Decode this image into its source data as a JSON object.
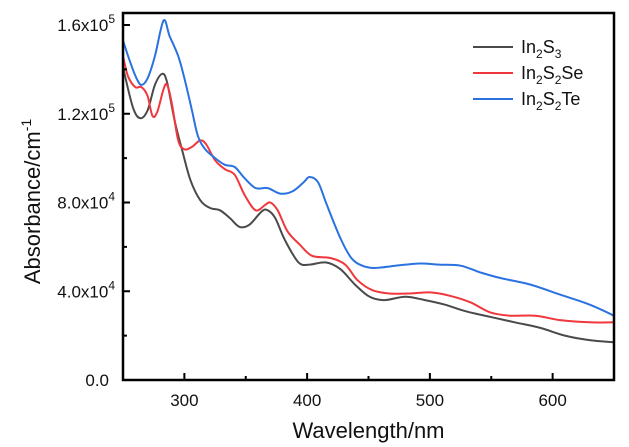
{
  "chart_data": {
    "type": "line",
    "title": "",
    "xlabel": "Wavelength/nm",
    "ylabel": "Absorbance/cm",
    "ylabel_superscript": "-1",
    "xlim": [
      250,
      650
    ],
    "ylim": [
      0,
      165000
    ],
    "x_ticks": [
      300,
      400,
      500,
      600
    ],
    "x_tick_labels": [
      "300",
      "400",
      "500",
      "600"
    ],
    "x_minor_ticks": [
      350,
      450,
      550
    ],
    "y_ticks": [
      0,
      40000,
      80000,
      120000,
      160000
    ],
    "y_tick_labels": [
      {
        "mantissa": "0.0",
        "exp": ""
      },
      {
        "mantissa": "4.0x10",
        "exp": "4"
      },
      {
        "mantissa": "8.0x10",
        "exp": "4"
      },
      {
        "mantissa": "1.2x10",
        "exp": "5"
      },
      {
        "mantissa": "1.6x10",
        "exp": "5"
      }
    ],
    "y_minor_ticks": [
      20000,
      60000,
      100000,
      140000
    ],
    "grid": false,
    "legend_position": "top-right",
    "series": [
      {
        "name": "In2S3",
        "label_parts": [
          [
            "In",
            ""
          ],
          [
            "2",
            "sub"
          ],
          [
            "S",
            ""
          ],
          [
            "3",
            "sub"
          ]
        ],
        "color": "#4a4a4a",
        "points": [
          [
            250,
            141000
          ],
          [
            258,
            123000
          ],
          [
            264,
            118000
          ],
          [
            270,
            121500
          ],
          [
            276,
            133000
          ],
          [
            282,
            138000
          ],
          [
            286,
            134000
          ],
          [
            292,
            117000
          ],
          [
            298,
            104000
          ],
          [
            305,
            90000
          ],
          [
            313,
            81000
          ],
          [
            321,
            77500
          ],
          [
            329,
            76500
          ],
          [
            337,
            73000
          ],
          [
            345,
            69000
          ],
          [
            353,
            70000
          ],
          [
            363,
            76000
          ],
          [
            368,
            76500
          ],
          [
            374,
            73000
          ],
          [
            382,
            63000
          ],
          [
            393,
            53000
          ],
          [
            402,
            52000
          ],
          [
            415,
            53000
          ],
          [
            427,
            50000
          ],
          [
            439,
            43000
          ],
          [
            451,
            37500
          ],
          [
            463,
            36000
          ],
          [
            480,
            37500
          ],
          [
            496,
            36000
          ],
          [
            512,
            34000
          ],
          [
            529,
            31000
          ],
          [
            549,
            28500
          ],
          [
            569,
            26000
          ],
          [
            590,
            23500
          ],
          [
            610,
            20000
          ],
          [
            630,
            18000
          ],
          [
            650,
            17000
          ]
        ]
      },
      {
        "name": "In2S2Se",
        "label_parts": [
          [
            "In",
            ""
          ],
          [
            "2",
            "sub"
          ],
          [
            "S",
            ""
          ],
          [
            "2",
            "sub"
          ],
          [
            "Se",
            ""
          ]
        ],
        "color": "#f0373c",
        "points": [
          [
            250,
            146000
          ],
          [
            254,
            137000
          ],
          [
            260,
            132000
          ],
          [
            265,
            132000
          ],
          [
            270,
            128000
          ],
          [
            274,
            119000
          ],
          [
            278,
            121000
          ],
          [
            283,
            131000
          ],
          [
            286,
            133000
          ],
          [
            290,
            124000
          ],
          [
            295,
            108000
          ],
          [
            300,
            104000
          ],
          [
            306,
            105000
          ],
          [
            313,
            108000
          ],
          [
            318,
            106000
          ],
          [
            325,
            99000
          ],
          [
            333,
            95000
          ],
          [
            341,
            92500
          ],
          [
            349,
            83500
          ],
          [
            358,
            76500
          ],
          [
            366,
            79000
          ],
          [
            370,
            80000
          ],
          [
            376,
            76500
          ],
          [
            384,
            67000
          ],
          [
            394,
            61000
          ],
          [
            404,
            56000
          ],
          [
            419,
            55000
          ],
          [
            431,
            52000
          ],
          [
            441,
            45000
          ],
          [
            453,
            40500
          ],
          [
            467,
            39000
          ],
          [
            484,
            39000
          ],
          [
            500,
            39500
          ],
          [
            516,
            38000
          ],
          [
            533,
            35000
          ],
          [
            549,
            30500
          ],
          [
            565,
            29000
          ],
          [
            586,
            29000
          ],
          [
            606,
            27000
          ],
          [
            630,
            26000
          ],
          [
            650,
            26000
          ]
        ]
      },
      {
        "name": "In2S2Te",
        "label_parts": [
          [
            "In",
            ""
          ],
          [
            "2",
            "sub"
          ],
          [
            "S",
            ""
          ],
          [
            "2",
            "sub"
          ],
          [
            "Te",
            ""
          ]
        ],
        "color": "#2a72e0",
        "points": [
          [
            250,
            153000
          ],
          [
            256,
            143000
          ],
          [
            261,
            136000
          ],
          [
            265,
            133000
          ],
          [
            270,
            136000
          ],
          [
            276,
            146000
          ],
          [
            283,
            162000
          ],
          [
            288,
            155000
          ],
          [
            295,
            146000
          ],
          [
            300,
            136000
          ],
          [
            306,
            122000
          ],
          [
            311,
            110000
          ],
          [
            317,
            104000
          ],
          [
            325,
            100000
          ],
          [
            333,
            97000
          ],
          [
            341,
            96000
          ],
          [
            349,
            91000
          ],
          [
            358,
            86500
          ],
          [
            368,
            86500
          ],
          [
            378,
            84000
          ],
          [
            388,
            85000
          ],
          [
            397,
            89000
          ],
          [
            402,
            91500
          ],
          [
            409,
            89000
          ],
          [
            416,
            79000
          ],
          [
            427,
            64000
          ],
          [
            436,
            55000
          ],
          [
            445,
            51500
          ],
          [
            455,
            50500
          ],
          [
            472,
            51500
          ],
          [
            492,
            52500
          ],
          [
            508,
            52000
          ],
          [
            525,
            51500
          ],
          [
            541,
            48500
          ],
          [
            557,
            46000
          ],
          [
            582,
            43000
          ],
          [
            606,
            38500
          ],
          [
            630,
            34000
          ],
          [
            650,
            29000
          ]
        ]
      }
    ]
  }
}
